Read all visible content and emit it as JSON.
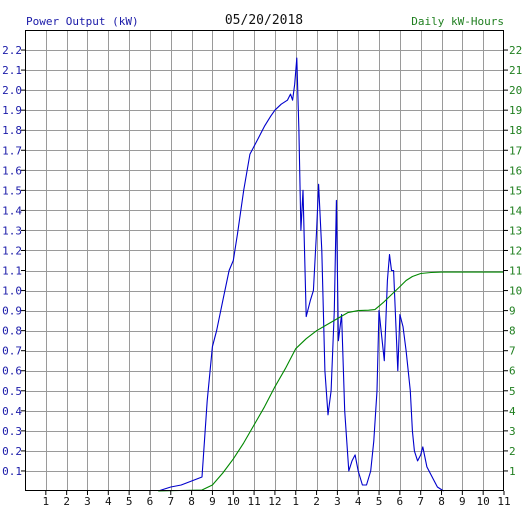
{
  "header": {
    "left_label": "Power Output (kW)",
    "date": "05/20/2018",
    "right_label": "Daily kW-Hours"
  },
  "colors": {
    "power": "#0000cc",
    "energy": "#008800",
    "grid": "#9a9a9a",
    "axis": "#000000",
    "left_text": "#1a1aa8",
    "right_text": "#1f7f1f"
  },
  "chart_data": {
    "type": "line",
    "grid": true,
    "x_ticks": [
      "1",
      "2",
      "3",
      "4",
      "5",
      "6",
      "7",
      "8",
      "9",
      "10",
      "11",
      "12",
      "1",
      "2",
      "3",
      "4",
      "5",
      "6",
      "7",
      "8",
      "9",
      "10",
      "11"
    ],
    "y_left_ticks": [
      "0.1",
      "0.2",
      "0.3",
      "0.4",
      "0.5",
      "0.6",
      "0.7",
      "0.8",
      "0.9",
      "1.0",
      "1.1",
      "1.2",
      "1.3",
      "1.4",
      "1.5",
      "1.6",
      "1.7",
      "1.8",
      "1.9",
      "2.0",
      "2.1",
      "2.2"
    ],
    "y_right_ticks": [
      "1",
      "2",
      "3",
      "4",
      "5",
      "6",
      "7",
      "8",
      "9",
      "10",
      "11",
      "12",
      "13",
      "14",
      "15",
      "16",
      "17",
      "18",
      "19",
      "20",
      "21",
      "22"
    ],
    "xlim": [
      0,
      23
    ],
    "ylim_left": [
      0,
      2.3
    ],
    "ylim_right": [
      0,
      23
    ],
    "series": [
      {
        "name": "Power Output (kW)",
        "axis": "left",
        "color": "#0000cc",
        "points": [
          [
            6.4,
            0.0
          ],
          [
            6.7,
            0.01
          ],
          [
            7.0,
            0.02
          ],
          [
            7.5,
            0.03
          ],
          [
            8.0,
            0.05
          ],
          [
            8.5,
            0.07
          ],
          [
            8.75,
            0.45
          ],
          [
            9.0,
            0.72
          ],
          [
            9.2,
            0.8
          ],
          [
            9.5,
            0.95
          ],
          [
            9.8,
            1.1
          ],
          [
            10.0,
            1.15
          ],
          [
            10.2,
            1.28
          ],
          [
            10.5,
            1.5
          ],
          [
            10.8,
            1.68
          ],
          [
            11.0,
            1.72
          ],
          [
            11.2,
            1.76
          ],
          [
            11.5,
            1.82
          ],
          [
            11.8,
            1.87
          ],
          [
            12.0,
            1.9
          ],
          [
            12.3,
            1.93
          ],
          [
            12.6,
            1.95
          ],
          [
            12.75,
            1.98
          ],
          [
            12.85,
            1.95
          ],
          [
            12.95,
            2.03
          ],
          [
            13.05,
            2.16
          ],
          [
            13.15,
            1.8
          ],
          [
            13.25,
            1.3
          ],
          [
            13.35,
            1.5
          ],
          [
            13.5,
            0.87
          ],
          [
            13.7,
            0.95
          ],
          [
            13.85,
            1.0
          ],
          [
            14.0,
            1.3
          ],
          [
            14.1,
            1.53
          ],
          [
            14.25,
            1.2
          ],
          [
            14.4,
            0.6
          ],
          [
            14.55,
            0.38
          ],
          [
            14.7,
            0.5
          ],
          [
            14.85,
            0.9
          ],
          [
            14.95,
            1.45
          ],
          [
            15.05,
            0.75
          ],
          [
            15.2,
            0.88
          ],
          [
            15.35,
            0.4
          ],
          [
            15.55,
            0.1
          ],
          [
            15.7,
            0.15
          ],
          [
            15.85,
            0.18
          ],
          [
            16.0,
            0.1
          ],
          [
            16.2,
            0.03
          ],
          [
            16.4,
            0.03
          ],
          [
            16.6,
            0.1
          ],
          [
            16.75,
            0.25
          ],
          [
            16.9,
            0.5
          ],
          [
            17.0,
            0.9
          ],
          [
            17.1,
            0.8
          ],
          [
            17.25,
            0.65
          ],
          [
            17.4,
            1.05
          ],
          [
            17.5,
            1.18
          ],
          [
            17.6,
            1.1
          ],
          [
            17.7,
            1.1
          ],
          [
            17.8,
            0.85
          ],
          [
            17.9,
            0.6
          ],
          [
            18.0,
            0.88
          ],
          [
            18.15,
            0.82
          ],
          [
            18.3,
            0.7
          ],
          [
            18.5,
            0.5
          ],
          [
            18.6,
            0.3
          ],
          [
            18.7,
            0.2
          ],
          [
            18.85,
            0.15
          ],
          [
            19.0,
            0.18
          ],
          [
            19.1,
            0.22
          ],
          [
            19.3,
            0.12
          ],
          [
            19.6,
            0.06
          ],
          [
            19.8,
            0.02
          ],
          [
            20.1,
            0.0
          ]
        ]
      },
      {
        "name": "Daily kW-Hours",
        "axis": "right",
        "color": "#008800",
        "points": [
          [
            6.4,
            0.0
          ],
          [
            8.5,
            0.05
          ],
          [
            9.0,
            0.3
          ],
          [
            9.5,
            0.9
          ],
          [
            10.0,
            1.6
          ],
          [
            10.5,
            2.4
          ],
          [
            11.0,
            3.3
          ],
          [
            11.5,
            4.2
          ],
          [
            12.0,
            5.2
          ],
          [
            12.5,
            6.1
          ],
          [
            13.0,
            7.1
          ],
          [
            13.5,
            7.6
          ],
          [
            14.0,
            8.0
          ],
          [
            14.5,
            8.3
          ],
          [
            15.0,
            8.6
          ],
          [
            15.5,
            8.9
          ],
          [
            16.0,
            9.0
          ],
          [
            16.5,
            9.02
          ],
          [
            16.8,
            9.05
          ],
          [
            17.2,
            9.4
          ],
          [
            17.6,
            9.8
          ],
          [
            18.0,
            10.2
          ],
          [
            18.3,
            10.5
          ],
          [
            18.6,
            10.7
          ],
          [
            19.0,
            10.85
          ],
          [
            19.5,
            10.9
          ],
          [
            20.0,
            10.92
          ],
          [
            21.0,
            10.92
          ],
          [
            23.0,
            10.92
          ]
        ]
      }
    ]
  }
}
